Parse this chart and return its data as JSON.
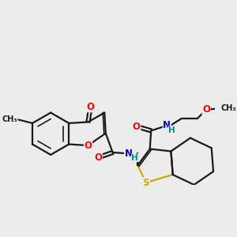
{
  "background_color": "#ececec",
  "bond_color": "#1a1a1a",
  "bond_width": 1.6,
  "atom_colors": {
    "O": "#ff0000",
    "N": "#0000cd",
    "S": "#ccaa00",
    "NH": "#008b8b",
    "H": "#008b8b",
    "C": "#1a1a1a"
  },
  "font_size": 8.5
}
